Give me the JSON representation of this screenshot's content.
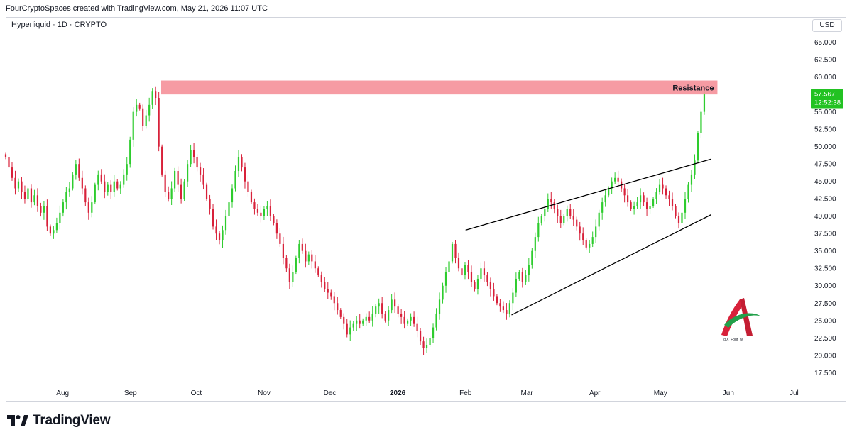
{
  "header": {
    "attribution": "FourCryptoSpaces created with TradingView.com, May 21, 2026 11:07 UTC"
  },
  "chart_header": {
    "symbol": "Hyperliquid · 1D · CRYPTO",
    "currency": "USD"
  },
  "price_tag": {
    "price": "57.567",
    "countdown": "12:52:38",
    "color": "#22c222"
  },
  "footer": {
    "brand": "TradingView"
  },
  "watermark": {
    "handle": "@X_Four_tv"
  },
  "colors": {
    "up": "#2ecc2e",
    "down": "#d8213a",
    "resistance_fill": "#f48a93",
    "trendline": "#000000"
  },
  "chart_data": {
    "type": "candlestick",
    "timeframe": "1D",
    "ylim": [
      16.0,
      67.0
    ],
    "y_ticks": [
      "17.500",
      "20.000",
      "22.500",
      "25.000",
      "27.500",
      "30.000",
      "32.500",
      "35.000",
      "37.500",
      "40.000",
      "42.500",
      "45.000",
      "47.500",
      "50.000",
      "52.500",
      "55.000",
      "57.500",
      "60.000",
      "62.500",
      "65.000"
    ],
    "x_ticks": [
      {
        "label": "Aug",
        "date": "2025-08-01",
        "bold": false
      },
      {
        "label": "Sep",
        "date": "2025-09-01",
        "bold": false
      },
      {
        "label": "Oct",
        "date": "2025-10-01",
        "bold": false
      },
      {
        "label": "Nov",
        "date": "2025-11-01",
        "bold": false
      },
      {
        "label": "Dec",
        "date": "2025-12-01",
        "bold": false
      },
      {
        "label": "2026",
        "date": "2026-01-01",
        "bold": true
      },
      {
        "label": "Feb",
        "date": "2026-02-01",
        "bold": false
      },
      {
        "label": "Mar",
        "date": "2026-03-01",
        "bold": false
      },
      {
        "label": "Apr",
        "date": "2026-04-01",
        "bold": false
      },
      {
        "label": "May",
        "date": "2026-05-01",
        "bold": false
      },
      {
        "label": "Jun",
        "date": "2026-06-01",
        "bold": false
      },
      {
        "label": "Jul",
        "date": "2026-07-01",
        "bold": false
      }
    ],
    "start_date": "2025-07-06",
    "end_date": "2026-07-08",
    "close_series": [
      48.5,
      47,
      45.5,
      44,
      45,
      43.5,
      42.5,
      44,
      42,
      43,
      41.5,
      40.5,
      41.5,
      38.5,
      37.5,
      38,
      39,
      40.5,
      42,
      43.5,
      44,
      46,
      47.5,
      45.5,
      44,
      42,
      40.5,
      42,
      44.5,
      46,
      45,
      43.5,
      44.5,
      43.5,
      45,
      44,
      44.5,
      46,
      47.5,
      51,
      55,
      56,
      55.5,
      53,
      54.5,
      56,
      58,
      57,
      50,
      46,
      43.5,
      42.5,
      44,
      46.5,
      44.5,
      42.5,
      45,
      47.5,
      49.5,
      48.5,
      47,
      46,
      44.5,
      42.5,
      41,
      38.5,
      37.5,
      36.5,
      38,
      40,
      42,
      44,
      46.5,
      48.5,
      47,
      45,
      43.5,
      42,
      41,
      40.5,
      40,
      41,
      41.5,
      40,
      39,
      37.5,
      36,
      34,
      32.5,
      30.5,
      32,
      34,
      36,
      35,
      33.5,
      34.5,
      33.5,
      32.5,
      31.5,
      30.5,
      29.5,
      29,
      28.5,
      27.5,
      26.5,
      25.5,
      24.5,
      23,
      24,
      24.5,
      25,
      24.5,
      25,
      25.5,
      25,
      26,
      27,
      27.5,
      26,
      25,
      26.5,
      28,
      27,
      26,
      25.5,
      24.5,
      25,
      25.5,
      24.5,
      23.5,
      22,
      21,
      21.5,
      22.5,
      24,
      26,
      28,
      30,
      32,
      33.5,
      36,
      34,
      32.5,
      31.5,
      33,
      32,
      30.5,
      29.5,
      31,
      32.5,
      31.5,
      30.5,
      29.5,
      28.5,
      27.5,
      27,
      26.5,
      26,
      27.5,
      29,
      31,
      32,
      30.5,
      31.5,
      33,
      35,
      37,
      39,
      40,
      41,
      42.5,
      42,
      41,
      40,
      39,
      40,
      41,
      40,
      39.5,
      38.5,
      37.5,
      36.5,
      35.5,
      36,
      37,
      38.5,
      40.5,
      42,
      43,
      44,
      45,
      45.5,
      45,
      44,
      43,
      42,
      41,
      41.5,
      42,
      43,
      42,
      41,
      41.5,
      42.5,
      43.5,
      44.5,
      44,
      43,
      42.5,
      41.5,
      40,
      39,
      40.5,
      42.5,
      44.5,
      46,
      48,
      52,
      55,
      57.567
    ],
    "candle_start_date": "2025-07-06",
    "last_candle_date": "2026-05-21",
    "annotations": [
      {
        "type": "zone",
        "label": "Resistance",
        "y_low": 57.5,
        "y_high": 59.5,
        "from_date": "2025-09-15",
        "to_date": "2026-05-27"
      }
    ],
    "trendlines": [
      {
        "name": "upper-trendline",
        "from": {
          "date": "2026-02-01",
          "price": 38.0
        },
        "to": {
          "date": "2026-05-24",
          "price": 48.2
        }
      },
      {
        "name": "lower-trendline",
        "from": {
          "date": "2026-02-22",
          "price": 25.8
        },
        "to": {
          "date": "2026-05-24",
          "price": 40.2
        }
      }
    ]
  }
}
